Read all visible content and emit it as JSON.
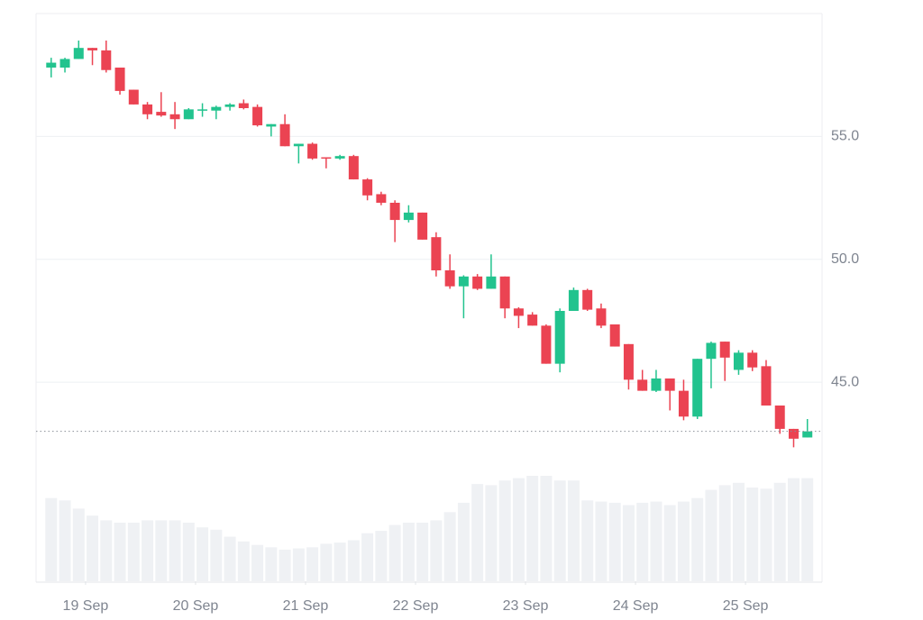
{
  "chart_data": {
    "type": "candlestick",
    "x": [
      -7.5,
      -4.5,
      -1.5,
      1.5,
      4.5,
      7.5,
      10.5,
      13.5,
      16.5,
      19.5,
      22.5,
      25.5,
      28.5,
      31.5,
      34.5,
      37.5,
      40.5,
      43.5,
      46.5,
      49.5,
      52.5,
      55.5,
      58.5,
      61.5,
      64.5,
      67.5,
      70.5,
      73.5,
      76.5,
      79.5,
      82.5,
      85.5,
      88.5,
      91.5,
      94.5,
      97.5,
      100.5,
      103.5,
      106.5,
      109.5,
      112.5,
      115.5,
      118.5,
      121.5,
      124.5,
      127.5,
      130.5,
      133.5,
      136.5,
      139.5,
      142.5,
      145.5,
      148.5,
      151.5,
      154.5,
      157.5
    ],
    "open": [
      57.8,
      57.8,
      58.15,
      58.6,
      58.5,
      57.8,
      56.9,
      56.3,
      56.0,
      55.9,
      55.7,
      56.05,
      56.05,
      56.2,
      56.35,
      56.2,
      55.4,
      55.5,
      54.6,
      54.7,
      54.15,
      54.1,
      54.2,
      53.25,
      52.65,
      52.3,
      51.6,
      51.9,
      50.9,
      49.55,
      48.9,
      49.3,
      48.8,
      49.3,
      48.0,
      47.75,
      47.3,
      45.75,
      47.9,
      48.75,
      48.0,
      47.35,
      46.55,
      45.1,
      44.65,
      45.15,
      44.65,
      43.6,
      45.95,
      46.65,
      45.5,
      46.2,
      45.65,
      44.05,
      43.1,
      42.75
    ],
    "high": [
      58.2,
      58.2,
      58.9,
      58.6,
      58.9,
      57.8,
      56.9,
      56.4,
      56.8,
      56.4,
      56.15,
      56.35,
      56.25,
      56.35,
      56.5,
      56.3,
      55.5,
      55.9,
      54.7,
      54.75,
      54.15,
      54.25,
      54.25,
      53.3,
      52.75,
      52.4,
      52.2,
      51.9,
      51.1,
      50.2,
      49.35,
      49.4,
      50.2,
      49.3,
      48.05,
      47.85,
      47.35,
      48.0,
      48.85,
      48.8,
      48.2,
      47.35,
      46.55,
      45.5,
      45.5,
      45.15,
      45.1,
      45.95,
      46.65,
      46.65,
      46.3,
      46.3,
      45.9,
      44.05,
      43.1,
      43.5
    ],
    "low": [
      57.4,
      57.6,
      58.15,
      57.9,
      57.6,
      56.7,
      56.3,
      55.7,
      55.8,
      55.3,
      55.7,
      55.8,
      55.7,
      56.05,
      56.1,
      55.4,
      55.0,
      54.6,
      53.9,
      54.05,
      53.7,
      54.05,
      53.25,
      52.4,
      52.2,
      50.7,
      51.5,
      50.8,
      49.3,
      48.8,
      47.6,
      48.75,
      48.8,
      47.6,
      47.2,
      47.3,
      45.75,
      45.4,
      47.9,
      47.9,
      47.2,
      46.45,
      44.7,
      44.65,
      44.6,
      43.85,
      43.45,
      43.5,
      44.75,
      45.05,
      45.3,
      45.45,
      44.05,
      42.9,
      42.35,
      42.75
    ],
    "close": [
      58.0,
      58.15,
      58.6,
      58.5,
      57.7,
      56.85,
      56.3,
      55.9,
      55.85,
      55.7,
      56.1,
      56.1,
      56.2,
      56.3,
      56.15,
      55.45,
      55.5,
      54.6,
      54.7,
      54.1,
      54.1,
      54.2,
      53.25,
      52.6,
      52.3,
      51.6,
      51.9,
      50.8,
      49.55,
      48.9,
      49.3,
      48.8,
      49.3,
      48.0,
      47.7,
      47.3,
      45.75,
      47.9,
      48.75,
      47.95,
      47.3,
      46.45,
      45.1,
      44.65,
      45.15,
      44.65,
      43.6,
      45.95,
      46.6,
      46.0,
      46.2,
      45.6,
      44.05,
      43.1,
      42.7,
      43.0
    ],
    "volume": [
      71,
      69,
      62,
      56,
      52,
      50,
      50,
      52,
      52,
      52,
      50,
      46,
      44,
      38,
      34,
      31,
      29,
      27,
      28,
      29,
      32,
      33,
      35,
      41,
      43,
      48,
      50,
      50,
      52,
      59,
      67,
      83,
      82,
      86,
      88,
      90,
      90,
      86,
      86,
      69,
      68,
      67,
      65,
      67,
      68,
      65,
      68,
      71,
      78,
      82,
      84,
      80,
      79,
      84,
      88,
      88
    ],
    "up_color": "#22c38e",
    "down_color": "#eb4352",
    "volume_color": "#eff1f4",
    "xlim": [
      -10.8,
      160.7
    ],
    "xticks": [
      {
        "value": 0,
        "label": "19 Sep"
      },
      {
        "value": 24,
        "label": "20 Sep"
      },
      {
        "value": 48,
        "label": "21 Sep"
      },
      {
        "value": 72,
        "label": "22 Sep"
      },
      {
        "value": 96,
        "label": "23 Sep"
      },
      {
        "value": 120,
        "label": "24 Sep"
      },
      {
        "value": 144,
        "label": "25 Sep"
      }
    ],
    "ylim": [
      36.9,
      60.0
    ],
    "yticks": [
      {
        "value": 45,
        "label": "45.0"
      },
      {
        "value": 50,
        "label": "50.0"
      },
      {
        "value": 55,
        "label": "55.0"
      }
    ],
    "y2lim": [
      0,
      100
    ],
    "grid": true,
    "price_line": true
  }
}
